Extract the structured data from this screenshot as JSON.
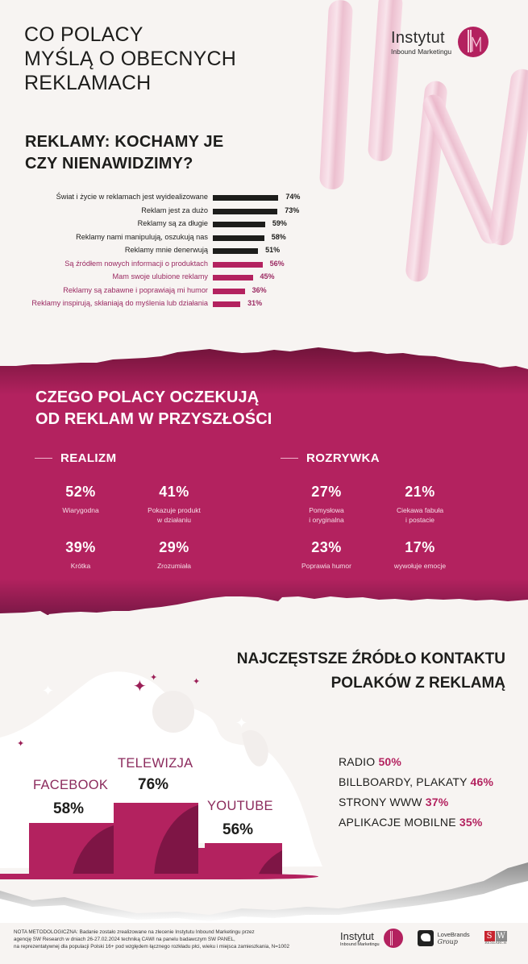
{
  "header": {
    "title_lines": [
      "CO POLACY",
      "MYŚLĄ O OBECNYCH",
      "REKLAMACH"
    ],
    "logo": {
      "name": "Instytut",
      "subtitle": "Inbound Marketingu",
      "mark": "IIM"
    }
  },
  "section1": {
    "title_lines": [
      "REKLAMY: KOCHAMY JE",
      "CZY NIENAWIDZIMY?"
    ]
  },
  "section2": {
    "title_lines": [
      "CZEGO POLACY OCZEKUJĄ",
      "OD REKLAM W PRZYSZŁOŚCI"
    ],
    "categories": [
      {
        "title": "REALIZM",
        "stats": [
          {
            "value": "52%",
            "label_lines": [
              "Wiarygodna"
            ]
          },
          {
            "value": "41%",
            "label_lines": [
              "Pokazuje produkt",
              "w działaniu"
            ]
          },
          {
            "value": "39%",
            "label_lines": [
              "Krótka"
            ]
          },
          {
            "value": "29%",
            "label_lines": [
              "Zrozumiała"
            ]
          }
        ]
      },
      {
        "title": "ROZRYWKA",
        "stats": [
          {
            "value": "27%",
            "label_lines": [
              "Pomysłowa",
              "i oryginalna"
            ]
          },
          {
            "value": "21%",
            "label_lines": [
              "Ciekawa fabuła",
              "i postacie"
            ]
          },
          {
            "value": "23%",
            "label_lines": [
              "Poprawia humor"
            ]
          },
          {
            "value": "17%",
            "label_lines": [
              "wywołuje emocje"
            ]
          }
        ]
      }
    ]
  },
  "section3": {
    "title_lines": [
      "NAJCZĘSTSZE ŹRÓDŁO KONTAKTU",
      "POLAKÓW Z REKLAMĄ"
    ],
    "podium": [
      {
        "label": "FACEBOOK",
        "value": "58%"
      },
      {
        "label": "TELEWIZJA",
        "value": "76%"
      },
      {
        "label": "YOUTUBE",
        "value": "56%"
      }
    ],
    "others": [
      {
        "label": "RADIO",
        "value": "50%"
      },
      {
        "label": "BILLBOARDY, PLAKATY",
        "value": "46%"
      },
      {
        "label": "STRONY WWW",
        "value": "37%"
      },
      {
        "label": "APLIKACJE MOBILNE",
        "value": "35%"
      }
    ]
  },
  "footer": {
    "note_lines": [
      "NOTA METODOLOGICZNA: Badanie zostało zrealizowane na zlecenie Instytutu Inbound Marketingu przez",
      "agencję SW Research w dniach 26-27.02.2024 techniką CAWI na panelu badawczym SW PANEL,",
      "na reprezentatywnej dla populacji Polski 16+ pod względem łącznego rozkładu płci, wieku i miejsca zamieszkania, N=1002"
    ],
    "logos": [
      {
        "name": "Instytut",
        "subtitle": "Inbound Marketingu"
      },
      {
        "name": "LoveBrands",
        "subtitle": "Group"
      },
      {
        "name": "SW",
        "subtitle": "RESEARCH"
      }
    ]
  },
  "colors": {
    "background": "#f7f4f2",
    "accent": "#b3225f",
    "accent_dark": "#7e1545",
    "negative_bar": "#1d1d1b",
    "positive_bar": "#b3225f"
  },
  "chart_data": [
    {
      "type": "bar",
      "orientation": "horizontal",
      "title": "REKLAMY: KOCHAMY JE CZY NIENAWIDZIMY?",
      "categories": [
        "Świat i życie w reklamach jest wyidealizowane",
        "Reklam jest za dużo",
        "Reklamy są za długie",
        "Reklamy nami manipulują, oszukują nas",
        "Reklamy mnie denerwują",
        "Są źródłem nowych informacji o produktach",
        "Mam swoje ulubione reklamy",
        "Reklamy są zabawne i poprawiają mi humor",
        "Reklamy inspirują, skłaniają do myślenia lub działania"
      ],
      "values": [
        74,
        73,
        59,
        58,
        51,
        56,
        45,
        36,
        31
      ],
      "value_labels": [
        "74%",
        "73%",
        "59%",
        "58%",
        "51%",
        "56%",
        "45%",
        "36%",
        "31%"
      ],
      "groups": [
        "negative",
        "negative",
        "negative",
        "negative",
        "negative",
        "positive",
        "positive",
        "positive",
        "positive"
      ],
      "xlabel": "",
      "ylabel": "",
      "xlim": [
        0,
        100
      ],
      "grid": false,
      "legend": "none"
    },
    {
      "type": "table",
      "title": "CZEGO POLACY OCZEKUJĄ OD REKLAM W PRZYSZŁOŚCI",
      "series": [
        {
          "name": "REALIZM",
          "categories": [
            "Wiarygodna",
            "Pokazuje produkt w działaniu",
            "Krótka",
            "Zrozumiała"
          ],
          "values": [
            52,
            41,
            39,
            29
          ]
        },
        {
          "name": "ROZRYWKA",
          "categories": [
            "Pomysłowa i oryginalna",
            "Ciekawa fabuła i postacie",
            "Poprawia humor",
            "wywołuje emocje"
          ],
          "values": [
            27,
            21,
            23,
            17
          ]
        }
      ]
    },
    {
      "type": "bar",
      "title": "NAJCZĘSTSZE ŹRÓDŁO KONTAKTU POLAKÓW Z REKLAMĄ",
      "categories": [
        "FACEBOOK",
        "TELEWIZJA",
        "YOUTUBE",
        "RADIO",
        "BILLBOARDY, PLAKATY",
        "STRONY WWW",
        "APLIKACJE MOBILNE"
      ],
      "values": [
        58,
        76,
        56,
        50,
        46,
        37,
        35
      ],
      "xlabel": "",
      "ylabel": "",
      "legend": "none"
    }
  ]
}
